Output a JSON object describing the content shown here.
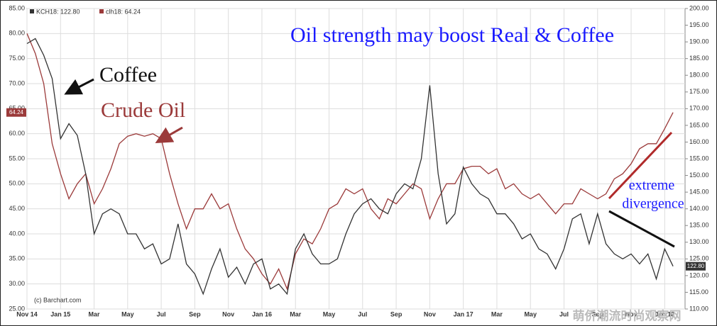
{
  "chart_data": {
    "type": "line",
    "title": "Oil strength may boost Real & Coffee",
    "annotations": {
      "coffee": "Coffee",
      "crude_oil": "Crude Oil",
      "extreme": "extreme",
      "divergence": "divergence",
      "source": "(c) Barchart.com",
      "watermark": "萌侨潮流时尚观察网"
    },
    "categories": [
      "Nov 14",
      null,
      null,
      null,
      "Jan 15",
      null,
      null,
      null,
      "Mar",
      null,
      null,
      null,
      "May",
      null,
      null,
      null,
      "Jul",
      null,
      null,
      null,
      "Sep",
      null,
      null,
      null,
      "Nov",
      null,
      null,
      null,
      "Jan 16",
      null,
      null,
      null,
      "Mar",
      null,
      null,
      null,
      "May",
      null,
      null,
      null,
      "Jul",
      null,
      null,
      null,
      "Sep",
      null,
      null,
      null,
      "Nov",
      null,
      null,
      null,
      "Jan 17",
      null,
      null,
      null,
      "Mar",
      null,
      null,
      null,
      "May",
      null,
      null,
      null,
      "Jul",
      null,
      null,
      null,
      "Sep",
      null,
      null,
      null,
      "Nov",
      null,
      null,
      null,
      "Jan 18",
      null
    ],
    "series": [
      {
        "name": "clh18: 64.24",
        "last_label": "64.24",
        "color": "#9b3a3a",
        "axis": "y",
        "values": [
          80,
          76,
          70,
          58,
          52,
          47,
          50,
          52,
          46,
          49,
          53,
          58,
          59.5,
          60,
          59.5,
          60,
          59,
          52,
          46,
          41,
          45,
          45,
          48,
          45,
          46,
          41,
          37,
          35,
          32,
          30,
          33,
          29,
          36,
          39,
          38,
          41,
          45,
          46,
          49,
          48,
          49,
          45,
          43,
          47,
          46,
          48,
          50,
          49,
          43,
          47,
          50,
          50,
          53,
          53.5,
          53.5,
          52,
          53,
          49,
          50,
          48,
          47,
          48,
          46,
          44,
          46,
          46,
          49,
          48,
          47,
          48,
          51,
          52,
          54,
          57,
          58,
          58,
          61,
          64.24
        ]
      },
      {
        "name": "KCH18: 122.80",
        "last_label": "122.80",
        "color": "#333333",
        "axis": "y2",
        "values": [
          189.5,
          191,
          186,
          179,
          161,
          165.5,
          162,
          150.5,
          132.5,
          138.5,
          140,
          138.5,
          132.5,
          132.5,
          128,
          129.5,
          123.5,
          125,
          135.5,
          123.5,
          120.5,
          114.5,
          122,
          128,
          119.5,
          122.5,
          117.5,
          123.5,
          125,
          116,
          117.5,
          114.5,
          128,
          132.5,
          126.5,
          123.5,
          123.5,
          125,
          132.5,
          138.5,
          141.5,
          143,
          140,
          138.5,
          144.5,
          147.5,
          146,
          155,
          177,
          150.5,
          135.5,
          138.5,
          152.5,
          147.5,
          144.5,
          143,
          138.5,
          138.5,
          135.5,
          131,
          132.5,
          128,
          126.5,
          122,
          128,
          137,
          138.5,
          129.5,
          138.5,
          129.5,
          126.5,
          125,
          126.5,
          123.5,
          126.5,
          119,
          128,
          122.8
        ]
      }
    ],
    "ylim": [
      25,
      85
    ],
    "yticks": [
      {
        "value": 25,
        "label": "25.00"
      },
      {
        "value": 30,
        "label": "30.00"
      },
      {
        "value": 35,
        "label": "35.00"
      },
      {
        "value": 40,
        "label": "40.00"
      },
      {
        "value": 45,
        "label": "45.00"
      },
      {
        "value": 50,
        "label": "50.00"
      },
      {
        "value": 55,
        "label": "55.00"
      },
      {
        "value": 60,
        "label": "60.00"
      },
      {
        "value": 65,
        "label": "65.00"
      },
      {
        "value": 70,
        "label": "70.00"
      },
      {
        "value": 75,
        "label": "75.00"
      },
      {
        "value": 80,
        "label": "80.00"
      },
      {
        "value": 85,
        "label": "85.00"
      }
    ],
    "y2lim": [
      110,
      200
    ],
    "y2ticks": [
      {
        "value": 110,
        "label": "110.00"
      },
      {
        "value": 115,
        "label": "115.00"
      },
      {
        "value": 120,
        "label": "120.00"
      },
      {
        "value": 125,
        "label": "125.00"
      },
      {
        "value": 130,
        "label": "130.00"
      },
      {
        "value": 135,
        "label": "135.00"
      },
      {
        "value": 140,
        "label": "140.00"
      },
      {
        "value": 145,
        "label": "145.00"
      },
      {
        "value": 150,
        "label": "150.00"
      },
      {
        "value": 155,
        "label": "155.00"
      },
      {
        "value": 160,
        "label": "160.00"
      },
      {
        "value": 165,
        "label": "165.00"
      },
      {
        "value": 170,
        "label": "170.00"
      },
      {
        "value": 175,
        "label": "175.00"
      },
      {
        "value": 180,
        "label": "180.00"
      },
      {
        "value": 185,
        "label": "185.00"
      },
      {
        "value": 190,
        "label": "190.00"
      },
      {
        "value": 195,
        "label": "195.00"
      },
      {
        "value": 200,
        "label": "200.00"
      }
    ],
    "grid": true
  }
}
